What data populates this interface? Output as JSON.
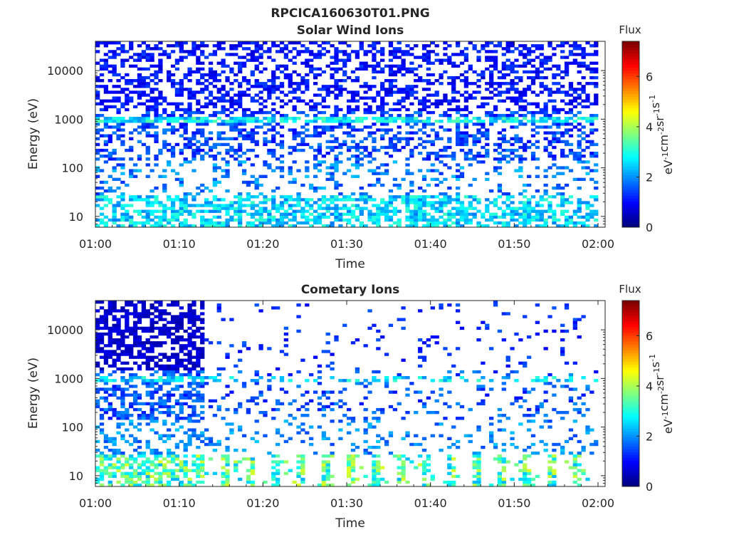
{
  "figure": {
    "title": "RPCICA160630T01.PNG"
  },
  "chart_data": [
    {
      "type": "heatmap",
      "title": "Solar Wind Ions",
      "xlabel": "Time",
      "ylabel": "Energy (eV)",
      "x_ticks": [
        "01:00",
        "01:10",
        "01:20",
        "01:30",
        "01:40",
        "01:50",
        "02:00"
      ],
      "x_range": [
        "01:00",
        "02:00"
      ],
      "y_scale": "log",
      "y_ticks": [
        "10",
        "100",
        "1000",
        "10000"
      ],
      "y_range": [
        6,
        40000
      ],
      "colorbar": {
        "title": "Flux",
        "label": "eV-1cm-2sr-1s-1",
        "label_parts": [
          "eV",
          "-1",
          "cm",
          "-2",
          "sr",
          "-1",
          "s",
          "-1"
        ],
        "ticks": [
          "0",
          "2",
          "4",
          "6"
        ],
        "range": [
          0,
          7.4
        ],
        "colormap": "jet"
      },
      "profile": "solar_wind"
    },
    {
      "type": "heatmap",
      "title": "Cometary Ions",
      "xlabel": "Time",
      "ylabel": "Energy (eV)",
      "x_ticks": [
        "01:00",
        "01:10",
        "01:20",
        "01:30",
        "01:40",
        "01:50",
        "02:00"
      ],
      "x_range": [
        "01:00",
        "02:00"
      ],
      "y_scale": "log",
      "y_ticks": [
        "10",
        "100",
        "1000",
        "10000"
      ],
      "y_range": [
        6,
        40000
      ],
      "colorbar": {
        "title": "Flux",
        "label": "eV-1cm-2sr-1s-1",
        "label_parts": [
          "eV",
          "-1",
          "cm",
          "-2",
          "sr",
          "-1",
          "s",
          "-1"
        ],
        "ticks": [
          "0",
          "2",
          "4",
          "6"
        ],
        "range": [
          0,
          7.4
        ],
        "colormap": "jet"
      },
      "profile": "cometary"
    }
  ]
}
